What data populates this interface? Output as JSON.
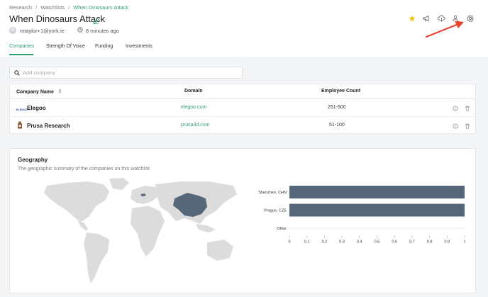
{
  "breadcrumb": [
    "Research",
    "Watchlists",
    "When Dinosaurs Attack"
  ],
  "title": "When Dinosaurs Attack",
  "meta": {
    "avatar_initial": "M",
    "user": "mtaylor+1@york.ie",
    "updated": "8 minutes ago"
  },
  "tabs": [
    "Companies",
    "Strength Of Voice",
    "Funding",
    "Investments"
  ],
  "search": {
    "placeholder": "Add company"
  },
  "table": {
    "headers": [
      "Company Name",
      "Domain",
      "Employee Count"
    ],
    "rows": [
      {
        "name": "Elegoo",
        "domain": "elegoo.com",
        "employees": "251-500",
        "logo_text": "ELEGOO"
      },
      {
        "name": "Prusa Research",
        "domain": "prusa3d.com",
        "employees": "51-100"
      }
    ]
  },
  "geography": {
    "title": "Geography",
    "subtitle": "The geographic summary of the companies on this watchlist"
  },
  "colors": {
    "accent": "#2f9e6e",
    "bar": "#56677a",
    "map_land": "#dcdcdc",
    "map_highlight": "#56677a",
    "star": "#f0c419",
    "arrow": "#e8432e"
  },
  "icons": [
    "star-icon",
    "megaphone-icon",
    "cloud-download-icon",
    "user-add-icon",
    "gear-icon",
    "pencil-icon",
    "clock-icon",
    "search-icon",
    "sort-icon",
    "info-icon",
    "trash-icon"
  ],
  "chart_data": {
    "type": "bar",
    "orientation": "horizontal",
    "categories": [
      "Shenzhen, CHN",
      "Prague, CZE",
      "Other"
    ],
    "values": [
      1,
      1,
      0
    ],
    "xlim": [
      0,
      1
    ],
    "xticks": [
      "0",
      "0.1",
      "0.2",
      "0.3",
      "0.4",
      "0.5",
      "0.6",
      "0.7",
      "0.8",
      "0.9",
      "1"
    ]
  }
}
